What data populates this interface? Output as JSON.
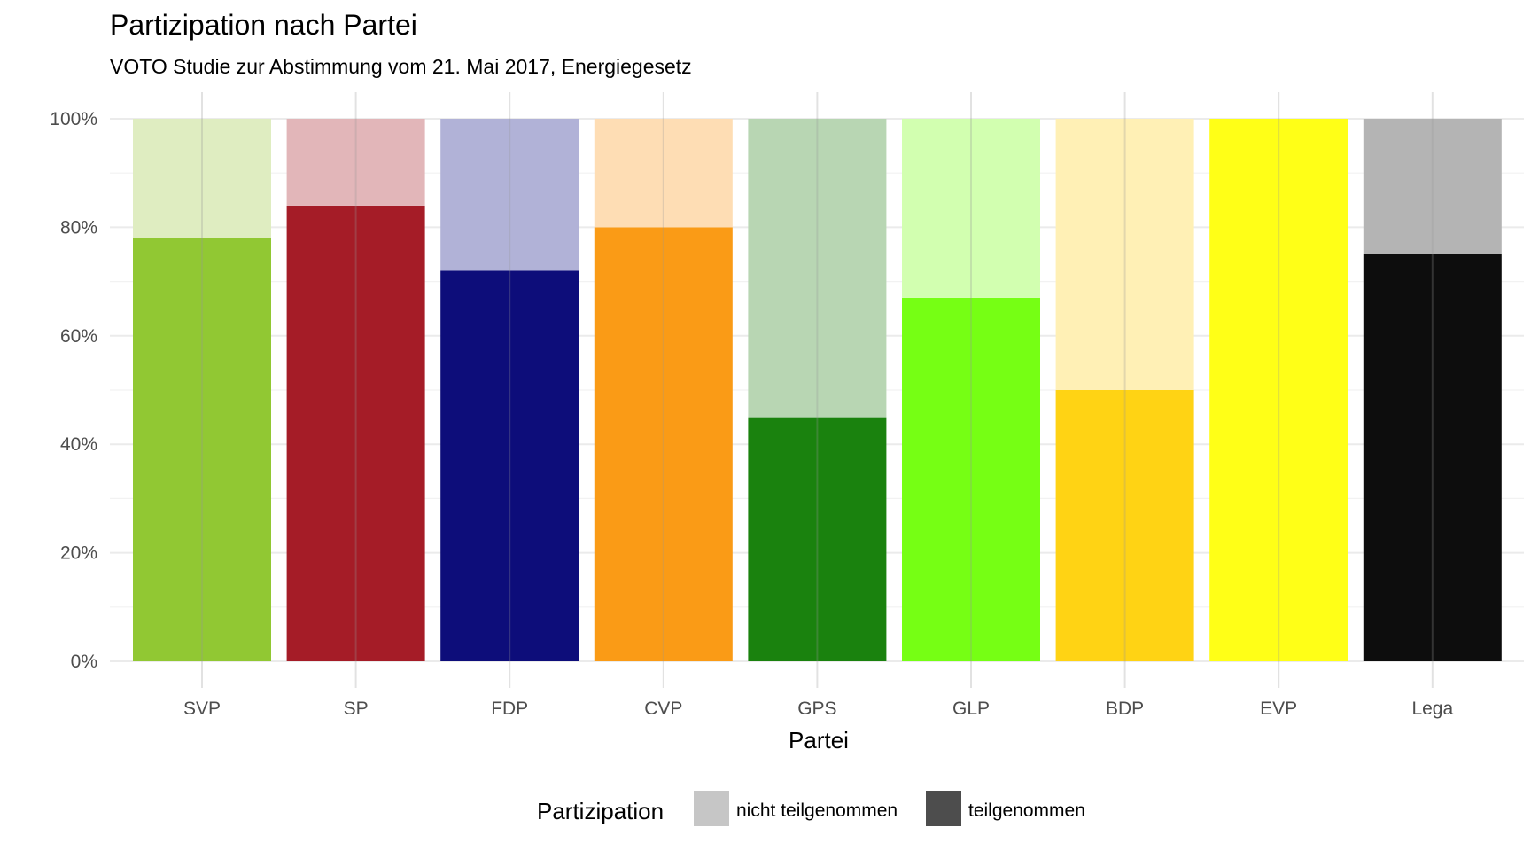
{
  "chart_data": {
    "type": "bar",
    "stacked": true,
    "title": "Partizipation nach Partei",
    "subtitle": "VOTO Studie zur Abstimmung vom 21. Mai 2017, Energiegesetz",
    "xlabel": "Partei",
    "ylabel": "",
    "ylim": [
      0,
      100
    ],
    "y_ticks": [
      "0%",
      "20%",
      "40%",
      "60%",
      "80%",
      "100%"
    ],
    "categories": [
      "SVP",
      "SP",
      "FDP",
      "CVP",
      "GPS",
      "GLP",
      "BDP",
      "EVP",
      "Lega"
    ],
    "series": [
      {
        "name": "teilgenommen",
        "values": [
          78,
          84,
          72,
          80,
          45,
          67,
          50,
          100,
          75
        ]
      },
      {
        "name": "nicht teilgenommen",
        "values": [
          22,
          16,
          28,
          20,
          55,
          33,
          50,
          0,
          25
        ]
      }
    ],
    "colors": {
      "teilgenommen": [
        "#91c833",
        "#a51c27",
        "#0d0d7a",
        "#fa9b16",
        "#1a820e",
        "#76ff14",
        "#ffd314",
        "#ffff17",
        "#0d0d0d"
      ],
      "nicht teilgenommen": [
        "#dfedc1",
        "#e2b6b9",
        "#b1b2d7",
        "#feddb4",
        "#b8d6b3",
        "#d2ffb0",
        "#fff0b5",
        "#ffffb9",
        "#b4b4b4"
      ]
    },
    "legend": {
      "title": "Partizipation",
      "position": "bottom",
      "entries": [
        {
          "label": "nicht teilgenommen",
          "swatch": "#c6c6c6"
        },
        {
          "label": "teilgenommen",
          "swatch": "#4d4d4d"
        }
      ]
    },
    "grid": true
  }
}
